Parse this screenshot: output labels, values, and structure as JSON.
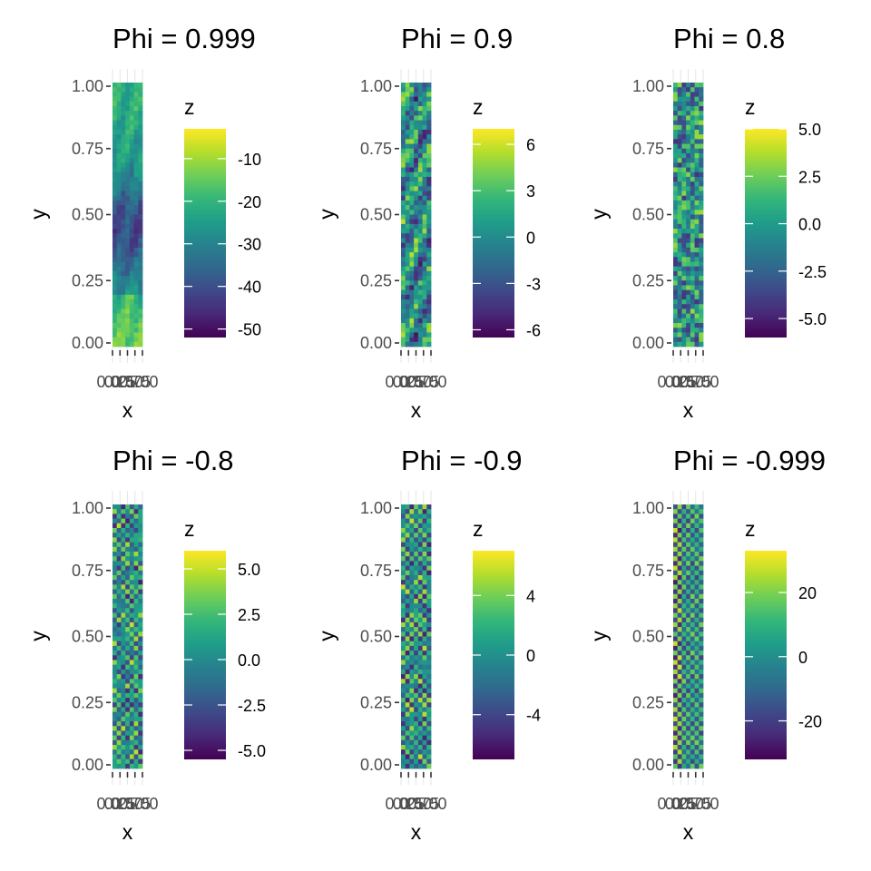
{
  "chart_data": [
    {
      "type": "heatmap",
      "title": "Phi =  0.999",
      "xlabel": "x",
      "ylabel": "y",
      "x_tick_labels": [
        "0.00",
        "0.25",
        "0.50",
        "0.75",
        "1.00"
      ],
      "y_tick_labels": [
        "0.00",
        "0.25",
        "0.50",
        "0.75",
        "1.00"
      ],
      "xlim": [
        0,
        1
      ],
      "ylim": [
        0,
        1
      ],
      "legend": {
        "title": "z",
        "placement": "right",
        "range": [
          -52,
          -3
        ],
        "ticks": [
          -10,
          -20,
          -30,
          -40,
          -50
        ],
        "tick_labels": [
          "-10",
          "-20",
          "-30",
          "-40",
          "-50"
        ]
      },
      "colormap": "viridis",
      "pattern": "smooth"
    },
    {
      "type": "heatmap",
      "title": "Phi =  0.9",
      "xlabel": "x",
      "ylabel": "y",
      "x_tick_labels": [
        "0.00",
        "0.25",
        "0.50",
        "0.75",
        "1.00"
      ],
      "y_tick_labels": [
        "0.00",
        "0.25",
        "0.50",
        "0.75",
        "1.00"
      ],
      "xlim": [
        0,
        1
      ],
      "ylim": [
        0,
        1
      ],
      "legend": {
        "title": "z",
        "placement": "right",
        "range": [
          -6.5,
          7
        ],
        "ticks": [
          6,
          3,
          0,
          -3,
          -6
        ],
        "tick_labels": [
          "6",
          "3",
          "0",
          "-3",
          "-6"
        ]
      },
      "colormap": "viridis",
      "pattern": "mixed"
    },
    {
      "type": "heatmap",
      "title": "Phi =  0.8",
      "xlabel": "x",
      "ylabel": "y",
      "x_tick_labels": [
        "0.00",
        "0.25",
        "0.50",
        "0.75",
        "1.00"
      ],
      "y_tick_labels": [
        "0.00",
        "0.25",
        "0.50",
        "0.75",
        "1.00"
      ],
      "xlim": [
        0,
        1
      ],
      "ylim": [
        0,
        1
      ],
      "legend": {
        "title": "z",
        "placement": "right",
        "range": [
          -6,
          5
        ],
        "ticks": [
          5,
          2.5,
          0,
          -2.5,
          -5
        ],
        "tick_labels": [
          "5.0",
          "2.5",
          "0.0",
          "-2.5",
          "-5.0"
        ]
      },
      "colormap": "viridis",
      "pattern": "noisy"
    },
    {
      "type": "heatmap",
      "title": "Phi =  -0.8",
      "xlabel": "x",
      "ylabel": "y",
      "x_tick_labels": [
        "0.00",
        "0.25",
        "0.50",
        "0.75",
        "1.00"
      ],
      "y_tick_labels": [
        "0.00",
        "0.25",
        "0.50",
        "0.75",
        "1.00"
      ],
      "xlim": [
        0,
        1
      ],
      "ylim": [
        0,
        1
      ],
      "legend": {
        "title": "z",
        "placement": "right",
        "range": [
          -5.5,
          6
        ],
        "ticks": [
          5,
          2.5,
          0,
          -2.5,
          -5
        ],
        "tick_labels": [
          "5.0",
          "2.5",
          "0.0",
          "-2.5",
          "-5.0"
        ]
      },
      "colormap": "viridis",
      "pattern": "alternating"
    },
    {
      "type": "heatmap",
      "title": "Phi =  -0.9",
      "xlabel": "x",
      "ylabel": "y",
      "x_tick_labels": [
        "0.00",
        "0.25",
        "0.50",
        "0.75",
        "1.00"
      ],
      "y_tick_labels": [
        "0.00",
        "0.25",
        "0.50",
        "0.75",
        "1.00"
      ],
      "xlim": [
        0,
        1
      ],
      "ylim": [
        0,
        1
      ],
      "legend": {
        "title": "z",
        "placement": "right",
        "range": [
          -7,
          7
        ],
        "ticks": [
          4,
          0,
          -4
        ],
        "tick_labels": [
          "4",
          "0",
          "-4"
        ]
      },
      "colormap": "viridis",
      "pattern": "alternating"
    },
    {
      "type": "heatmap",
      "title": "Phi =  -0.999",
      "xlabel": "x",
      "ylabel": "y",
      "x_tick_labels": [
        "0.00",
        "0.25",
        "0.50",
        "0.75",
        "1.00"
      ],
      "y_tick_labels": [
        "0.00",
        "0.25",
        "0.50",
        "0.75",
        "1.00"
      ],
      "xlim": [
        0,
        1
      ],
      "ylim": [
        0,
        1
      ],
      "legend": {
        "title": "z",
        "placement": "right",
        "range": [
          -32,
          33
        ],
        "ticks": [
          20,
          0,
          -20
        ],
        "tick_labels": [
          "20",
          "0",
          "-20"
        ]
      },
      "colormap": "viridis",
      "pattern": "checker"
    }
  ]
}
